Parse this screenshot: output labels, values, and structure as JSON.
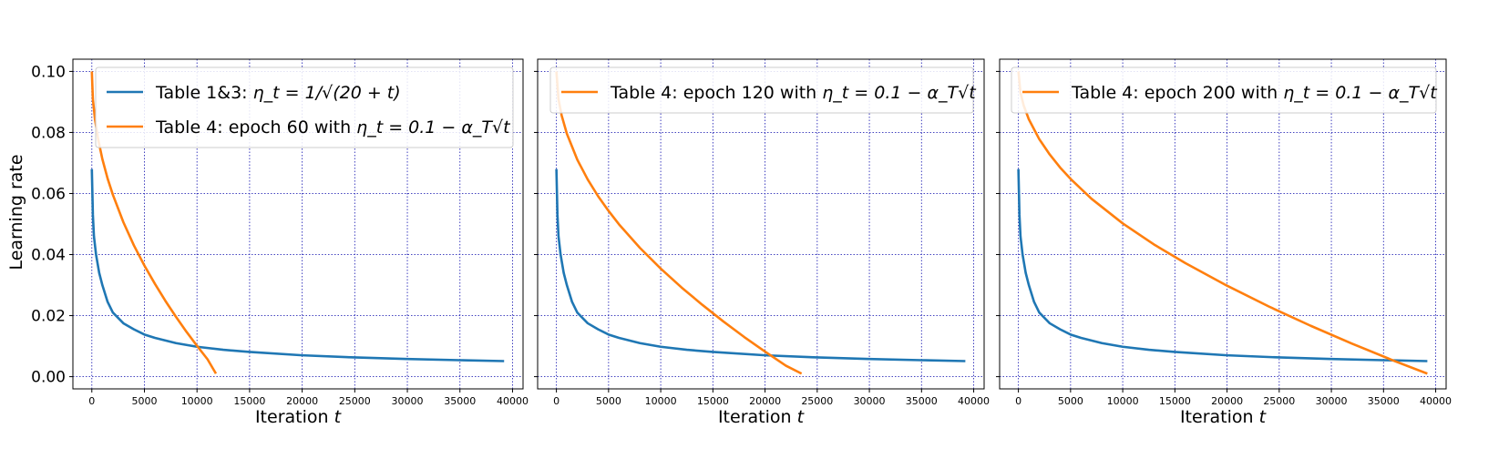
{
  "figure": {
    "ylabel": "Learning rate"
  },
  "chart_data": [
    {
      "type": "line",
      "xlabel": "Iteration t",
      "ylabel": "Learning rate",
      "xlim": [
        -1800,
        41000
      ],
      "ylim": [
        -0.004,
        0.104
      ],
      "xticks": [
        0,
        5000,
        10000,
        15000,
        20000,
        25000,
        30000,
        35000,
        40000
      ],
      "yticks": [
        0.0,
        0.02,
        0.04,
        0.06,
        0.08,
        0.1
      ],
      "ytick_labels": [
        "0.00",
        "0.02",
        "0.04",
        "0.06",
        "0.08",
        "0.10"
      ],
      "grid": true,
      "legend_position": "top-left",
      "series": [
        {
          "name": "Table 1&3: η_t = 1/√(20 + t)",
          "legend_main": "Table 1&3: ",
          "legend_math": "η_t = 1/√(20 + t)",
          "color": "#1f77b4",
          "x": [
            0,
            100,
            200,
            400,
            700,
            1000,
            1500,
            2000,
            3000,
            4000,
            5000,
            6000,
            8000,
            10000,
            12500,
            15000,
            20000,
            25000,
            30000,
            35000,
            39200
          ],
          "y": [
            0.068,
            0.053,
            0.046,
            0.04,
            0.034,
            0.03,
            0.0245,
            0.021,
            0.0175,
            0.0155,
            0.0138,
            0.0127,
            0.011,
            0.0098,
            0.0088,
            0.0081,
            0.007,
            0.0063,
            0.0058,
            0.0054,
            0.0051
          ]
        },
        {
          "name": "Table 4: epoch 60 with η_t = 0.1 − α_T√t",
          "legend_main": "Table 4: epoch 60 with ",
          "legend_math": "η_t = 0.1 − α_T√t",
          "color": "#ff7f0e",
          "x": [
            0,
            100,
            300,
            600,
            1000,
            1500,
            2000,
            3000,
            4000,
            5000,
            6000,
            7000,
            8000,
            9000,
            10000,
            11000,
            11800
          ],
          "y": [
            0.1,
            0.0909,
            0.0843,
            0.0778,
            0.0713,
            0.0649,
            0.0596,
            0.0506,
            0.043,
            0.0364,
            0.0304,
            0.0248,
            0.0196,
            0.0147,
            0.0101,
            0.0057,
            0.001
          ]
        }
      ]
    },
    {
      "type": "line",
      "xlabel": "Iteration t",
      "ylabel": "",
      "xlim": [
        -1800,
        41000
      ],
      "ylim": [
        -0.004,
        0.104
      ],
      "xticks": [
        0,
        5000,
        10000,
        15000,
        20000,
        25000,
        30000,
        35000,
        40000
      ],
      "yticks": [
        0.0,
        0.02,
        0.04,
        0.06,
        0.08,
        0.1
      ],
      "ytick_labels": [],
      "grid": true,
      "legend_position": "top",
      "series": [
        {
          "name": "",
          "color": "#1f77b4",
          "x": [
            0,
            100,
            200,
            400,
            700,
            1000,
            1500,
            2000,
            3000,
            4000,
            5000,
            6000,
            8000,
            10000,
            12500,
            15000,
            20000,
            25000,
            30000,
            35000,
            39200
          ],
          "y": [
            0.068,
            0.053,
            0.046,
            0.04,
            0.034,
            0.03,
            0.0245,
            0.021,
            0.0175,
            0.0155,
            0.0138,
            0.0127,
            0.011,
            0.0098,
            0.0088,
            0.0081,
            0.007,
            0.0063,
            0.0058,
            0.0054,
            0.0051
          ]
        },
        {
          "name": "Table 4: epoch 120 with η_t = 0.1 − α_T√t",
          "legend_main": "Table 4: epoch 120 with ",
          "legend_math": "η_t = 0.1 − α_T√t",
          "color": "#ff7f0e",
          "x": [
            0,
            200,
            500,
            1000,
            2000,
            3000,
            4000,
            5000,
            6000,
            8000,
            10000,
            12000,
            14000,
            16000,
            18000,
            20000,
            22000,
            23500
          ],
          "y": [
            0.1,
            0.0909,
            0.0856,
            0.0796,
            0.0711,
            0.0646,
            0.0591,
            0.0543,
            0.0499,
            0.0422,
            0.0354,
            0.0292,
            0.0235,
            0.0181,
            0.013,
            0.0082,
            0.0036,
            0.001
          ]
        }
      ]
    },
    {
      "type": "line",
      "xlabel": "Iteration t",
      "ylabel": "",
      "xlim": [
        -1800,
        41000
      ],
      "ylim": [
        -0.004,
        0.104
      ],
      "xticks": [
        0,
        5000,
        10000,
        15000,
        20000,
        25000,
        30000,
        35000,
        40000
      ],
      "yticks": [
        0.0,
        0.02,
        0.04,
        0.06,
        0.08,
        0.1
      ],
      "ytick_labels": [],
      "grid": true,
      "legend_position": "top",
      "series": [
        {
          "name": "",
          "color": "#1f77b4",
          "x": [
            0,
            100,
            200,
            400,
            700,
            1000,
            1500,
            2000,
            3000,
            4000,
            5000,
            6000,
            8000,
            10000,
            12500,
            15000,
            20000,
            25000,
            30000,
            35000,
            39200
          ],
          "y": [
            0.068,
            0.053,
            0.046,
            0.04,
            0.034,
            0.03,
            0.0245,
            0.021,
            0.0175,
            0.0155,
            0.0138,
            0.0127,
            0.011,
            0.0098,
            0.0088,
            0.0081,
            0.007,
            0.0063,
            0.0058,
            0.0054,
            0.0051
          ]
        },
        {
          "name": "Table 4: epoch 200 with η_t = 0.1 − α_T√t",
          "legend_main": "Table 4: epoch 200 with ",
          "legend_math": "η_t = 0.1 − α_T√t",
          "color": "#ff7f0e",
          "x": [
            0,
            200,
            500,
            1000,
            2000,
            3000,
            4000,
            5000,
            7000,
            10000,
            13000,
            16000,
            20000,
            24000,
            28000,
            32000,
            36000,
            39200
          ],
          "y": [
            0.1,
            0.093,
            0.0889,
            0.0843,
            0.0778,
            0.0728,
            0.0685,
            0.0648,
            0.0583,
            0.0502,
            0.0433,
            0.0372,
            0.0298,
            0.023,
            0.0167,
            0.0108,
            0.0052,
            0.001
          ]
        }
      ]
    }
  ]
}
